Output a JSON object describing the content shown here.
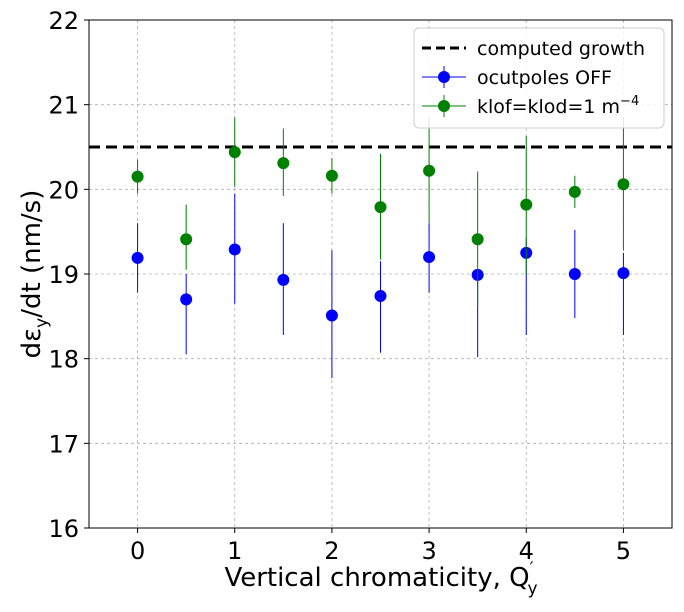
{
  "chart_data": {
    "type": "scatter",
    "xlabel": "Vertical chromaticity, Q",
    "xlabel_sub": "y",
    "xlabel_sup": "′",
    "ylabel": "dε",
    "ylabel_sub": "y",
    "ylabel_tail": "/dt (nm/s)",
    "xlim": [
      -0.5,
      5.5
    ],
    "ylim": [
      16,
      22
    ],
    "xticks": [
      0,
      1,
      2,
      3,
      4,
      5
    ],
    "yticks": [
      16,
      17,
      18,
      19,
      20,
      21,
      22
    ],
    "grid": true,
    "legend_position": "top-right",
    "reference_line": {
      "name": "computed growth",
      "y": 20.5,
      "color": "#000000",
      "style": "dashed"
    },
    "series": [
      {
        "name": "ocutpoles OFF",
        "color": "#0000ff",
        "points": [
          {
            "x": 0.0,
            "y": 19.19,
            "lo": 18.78,
            "hi": 19.6
          },
          {
            "x": 0.5,
            "y": 18.7,
            "lo": 18.05,
            "hi": 19.0
          },
          {
            "x": 1.0,
            "y": 19.29,
            "lo": 18.65,
            "hi": 19.95
          },
          {
            "x": 1.5,
            "y": 18.93,
            "lo": 18.28,
            "hi": 19.6
          },
          {
            "x": 2.0,
            "y": 18.51,
            "lo": 17.77,
            "hi": 19.28
          },
          {
            "x": 2.5,
            "y": 18.74,
            "lo": 18.07,
            "hi": 19.15
          },
          {
            "x": 3.0,
            "y": 19.2,
            "lo": 18.78,
            "hi": 19.6
          },
          {
            "x": 3.5,
            "y": 18.99,
            "lo": 18.02,
            "hi": 19.05
          },
          {
            "x": 4.0,
            "y": 19.25,
            "lo": 18.28,
            "hi": 19.42
          },
          {
            "x": 4.5,
            "y": 19.0,
            "lo": 18.48,
            "hi": 19.52
          },
          {
            "x": 5.0,
            "y": 19.01,
            "lo": 18.28,
            "hi": 19.25
          }
        ]
      },
      {
        "name": "klof=klod=1 m",
        "name_sup": "−4",
        "color": "#008000",
        "points": [
          {
            "x": 0.0,
            "y": 20.15,
            "lo": 19.95,
            "hi": 20.35
          },
          {
            "x": 0.5,
            "y": 19.41,
            "lo": 19.05,
            "hi": 19.82
          },
          {
            "x": 1.0,
            "y": 20.44,
            "lo": 20.03,
            "hi": 20.85
          },
          {
            "x": 1.5,
            "y": 20.31,
            "lo": 19.92,
            "hi": 20.72
          },
          {
            "x": 2.0,
            "y": 20.16,
            "lo": 19.95,
            "hi": 20.37
          },
          {
            "x": 2.5,
            "y": 19.79,
            "lo": 19.17,
            "hi": 20.42
          },
          {
            "x": 3.0,
            "y": 20.22,
            "lo": 19.6,
            "hi": 20.85
          },
          {
            "x": 3.5,
            "y": 19.41,
            "lo": 18.62,
            "hi": 20.21
          },
          {
            "x": 4.0,
            "y": 19.82,
            "lo": 19.0,
            "hi": 20.63
          },
          {
            "x": 4.5,
            "y": 19.97,
            "lo": 19.78,
            "hi": 20.16
          },
          {
            "x": 5.0,
            "y": 20.06,
            "lo": 19.28,
            "hi": 20.85
          }
        ]
      }
    ]
  }
}
